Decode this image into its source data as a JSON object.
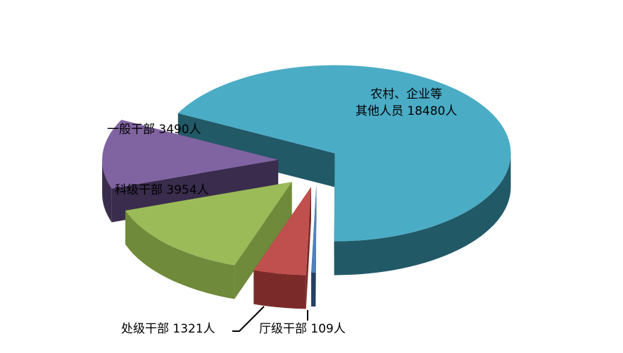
{
  "chart_data": {
    "type": "pie",
    "style": "3d-exploded",
    "unit": "人",
    "slices": [
      {
        "label": "农村、企业等其他人员",
        "label_line1": "农村、企业等",
        "label_line2": "其他人员 18480人",
        "value": 18480,
        "color": "#4bacc6",
        "side": "#215967"
      },
      {
        "label": "厅级干部",
        "text": "厅级干部 109人",
        "value": 109,
        "color": "#4f81bd",
        "side": "#254061"
      },
      {
        "label": "处级干部",
        "text": "处级干部 1321人",
        "value": 1321,
        "color": "#c0504d",
        "side": "#7a2b29"
      },
      {
        "label": "科级干部",
        "text": "科级干部 3954人",
        "value": 3954,
        "color": "#9bbb59",
        "side": "#6f8a3a"
      },
      {
        "label": "一般干部",
        "text": "一般干部 3490人",
        "value": 3490,
        "color": "#8064a2",
        "side": "#3a2c4d"
      }
    ]
  }
}
